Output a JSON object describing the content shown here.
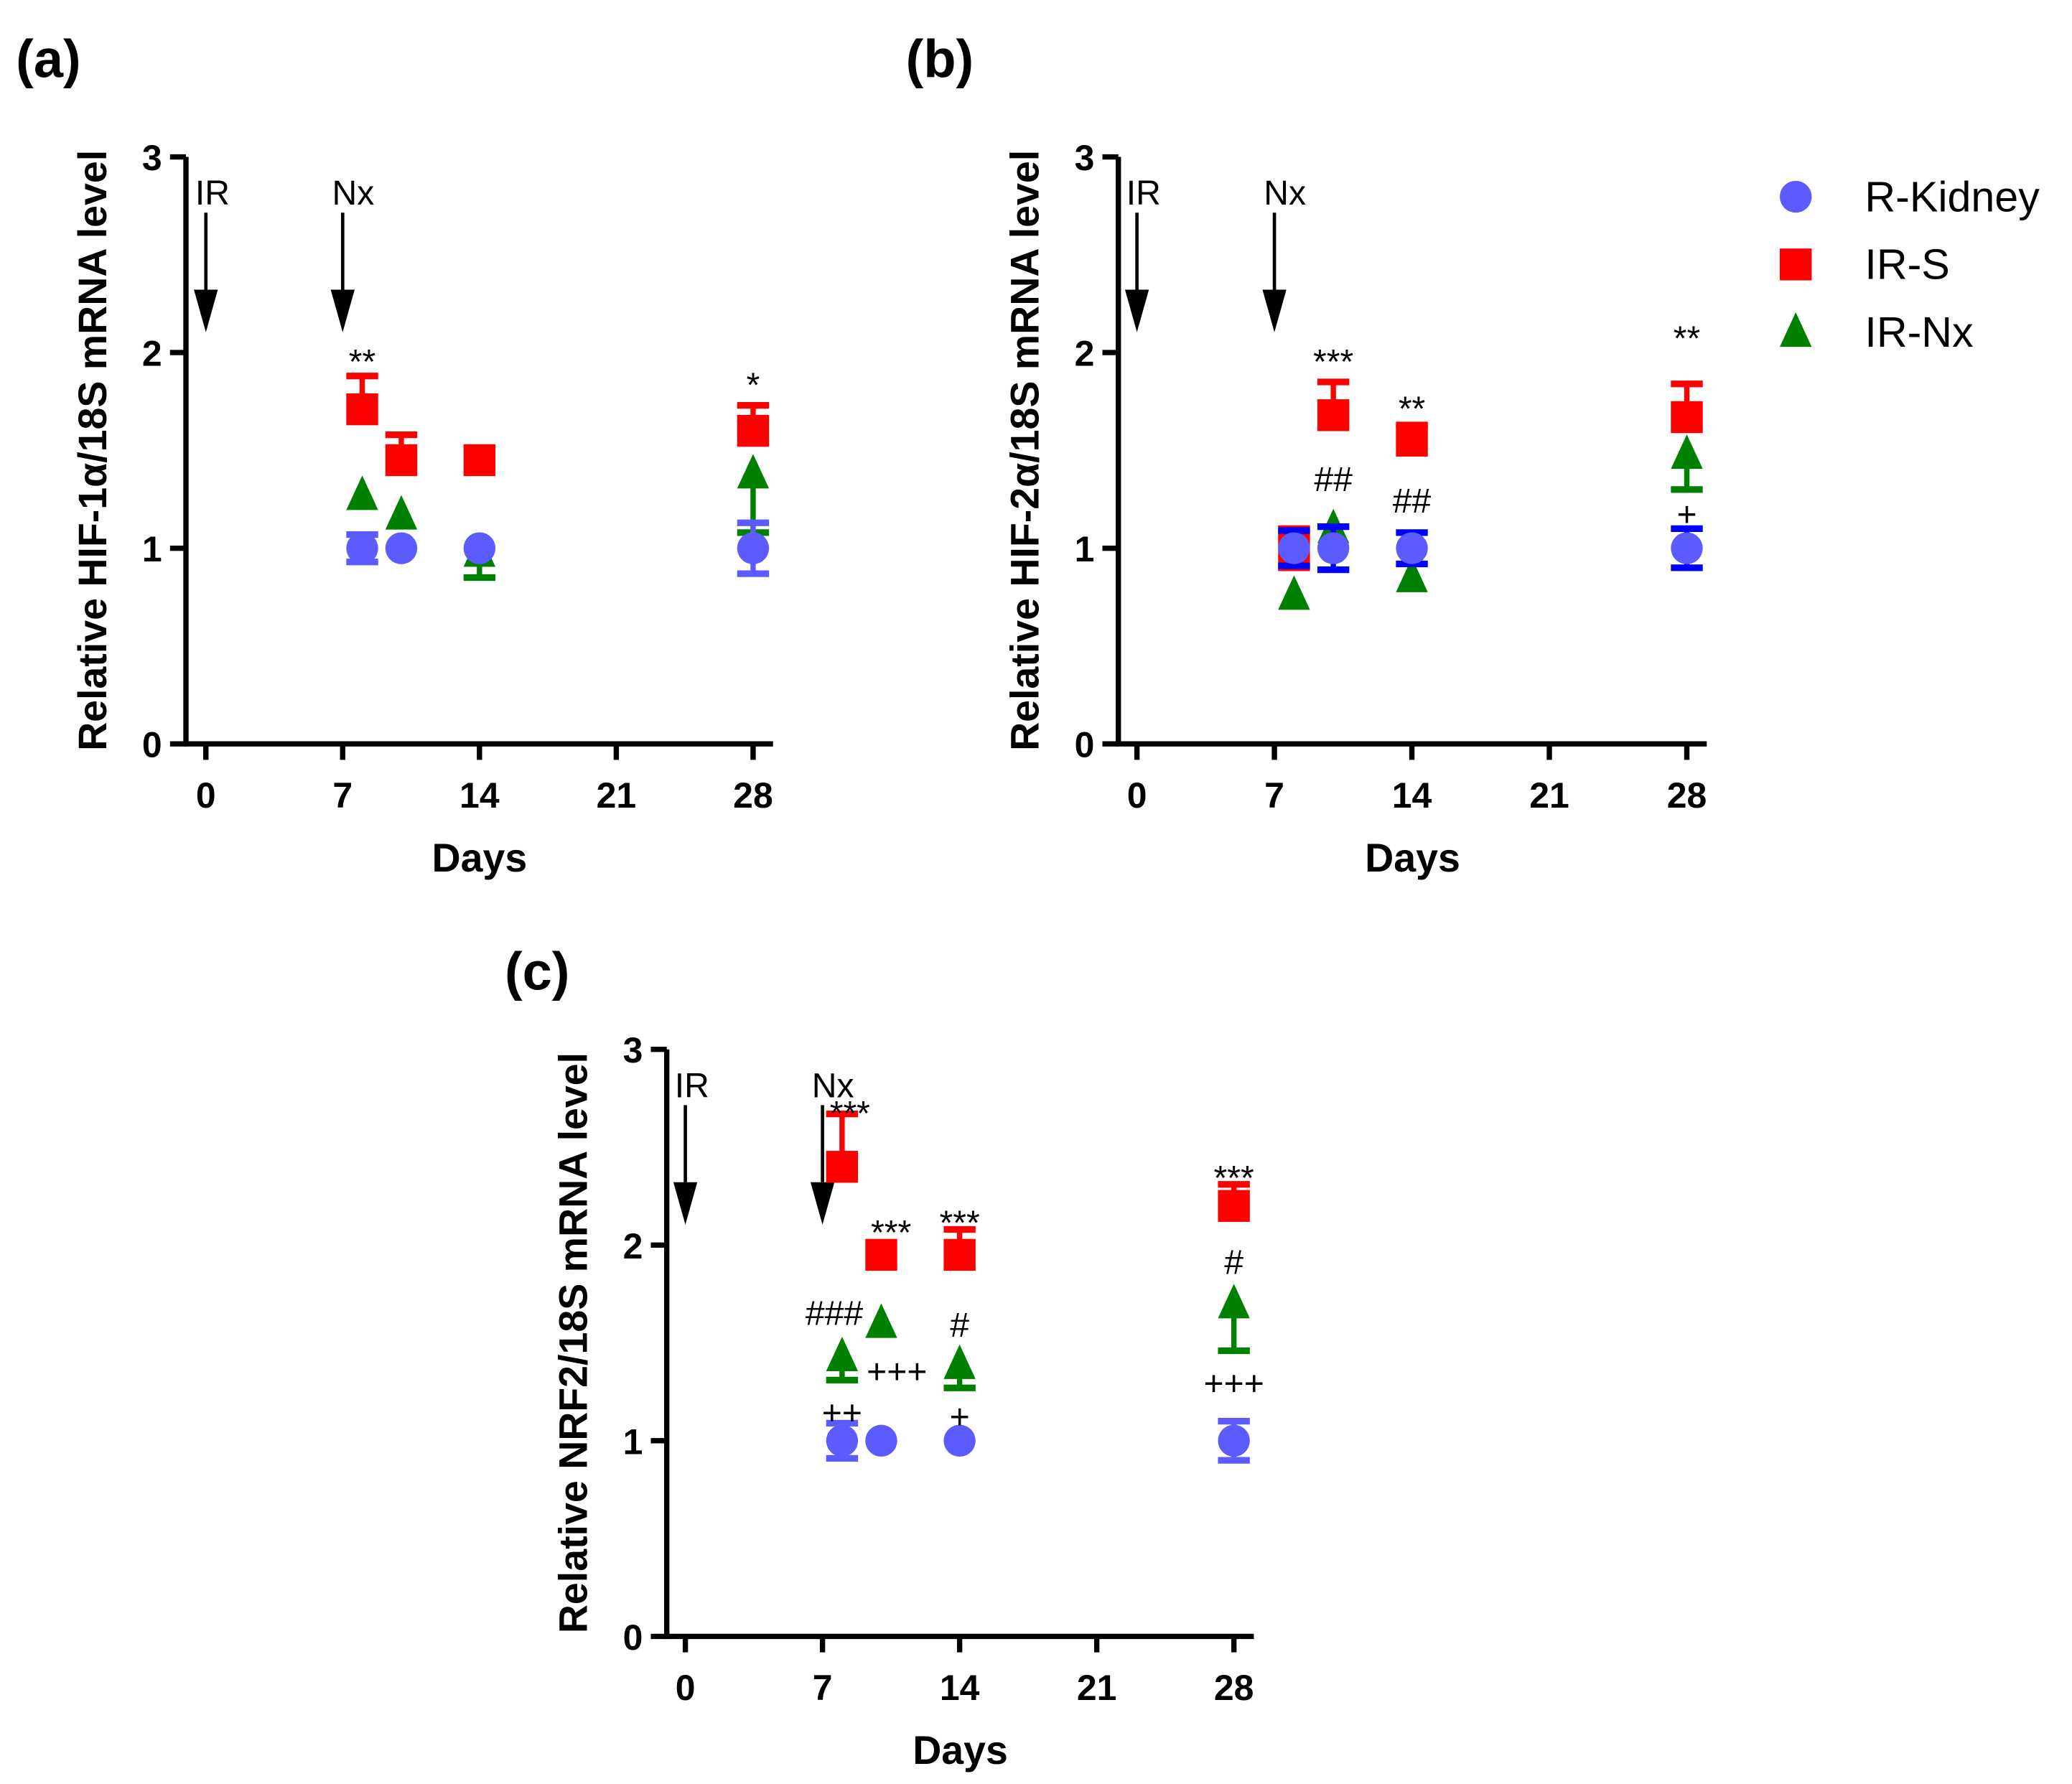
{
  "colors": {
    "R-Kidney": "#5b5bff",
    "IR-S": "#ff0000",
    "IR-Nx": "#008000",
    "axis": "#000000"
  },
  "legend": [
    {
      "name": "R-Kidney",
      "marker": "circle"
    },
    {
      "name": "IR-S",
      "marker": "square"
    },
    {
      "name": "IR-Nx",
      "marker": "triangle"
    }
  ],
  "chart_data": [
    {
      "type": "scatter",
      "label": "(a)",
      "xlabel": "Days",
      "ylabel": "Relative HIF-1α/18S mRNA level",
      "xticks": [
        0,
        7,
        14,
        21,
        28
      ],
      "yticks": [
        0,
        1,
        2,
        3
      ],
      "xlim": [
        0,
        28
      ],
      "ylim": [
        0,
        3
      ],
      "events": [
        {
          "label": "IR",
          "day": 0
        },
        {
          "label": "Nx",
          "day": 7
        }
      ],
      "series": [
        {
          "name": "R-Kidney",
          "points": [
            {
              "x": 8,
              "y": 1.0,
              "err": 0.07
            },
            {
              "x": 10,
              "y": 1.0,
              "err": 0
            },
            {
              "x": 14,
              "y": 1.0,
              "err": 0
            },
            {
              "x": 28,
              "y": 1.0,
              "err": 0.13
            }
          ]
        },
        {
          "name": "IR-S",
          "points": [
            {
              "x": 8,
              "y": 1.71,
              "err": 0.17
            },
            {
              "x": 10,
              "y": 1.45,
              "err": 0.13
            },
            {
              "x": 14,
              "y": 1.45,
              "err": 0
            },
            {
              "x": 28,
              "y": 1.6,
              "err": 0.13
            }
          ]
        },
        {
          "name": "IR-Nx",
          "points": [
            {
              "x": 8,
              "y": 1.27,
              "err": 0
            },
            {
              "x": 10,
              "y": 1.17,
              "err": 0
            },
            {
              "x": 14,
              "y": 0.98,
              "err": 0.13,
              "dir": "down"
            },
            {
              "x": 28,
              "y": 1.38,
              "err": 0.3,
              "dir": "down"
            }
          ]
        }
      ],
      "annotations": [
        {
          "text": "**",
          "x": 8,
          "y": 1.96
        },
        {
          "text": "*",
          "x": 28,
          "y": 1.84
        }
      ]
    },
    {
      "type": "scatter",
      "label": "(b)",
      "xlabel": "Days",
      "ylabel": "Relative HIF-2α/18S mRNA level",
      "xticks": [
        0,
        7,
        14,
        21,
        28
      ],
      "yticks": [
        0,
        1,
        2,
        3
      ],
      "xlim": [
        0,
        28
      ],
      "ylim": [
        0,
        3
      ],
      "events": [
        {
          "label": "IR",
          "day": 0
        },
        {
          "label": "Nx",
          "day": 7
        }
      ],
      "series": [
        {
          "name": "R-Kidney",
          "errcolor": "#0000ff",
          "points": [
            {
              "x": 8,
              "y": 1.0,
              "err": 0.09
            },
            {
              "x": 10,
              "y": 1.0,
              "err": 0.11
            },
            {
              "x": 14,
              "y": 1.0,
              "err": 0.08
            },
            {
              "x": 28,
              "y": 1.0,
              "err": 0.1
            }
          ]
        },
        {
          "name": "IR-S",
          "points": [
            {
              "x": 8,
              "y": 1.0,
              "err": 0.1
            },
            {
              "x": 10,
              "y": 1.68,
              "err": 0.17
            },
            {
              "x": 14,
              "y": 1.55,
              "err": 0.08
            },
            {
              "x": 28,
              "y": 1.67,
              "err": 0.17
            }
          ]
        },
        {
          "name": "IR-Nx",
          "points": [
            {
              "x": 8,
              "y": 0.76,
              "err": 0
            },
            {
              "x": 10,
              "y": 1.1,
              "err": 0
            },
            {
              "x": 14,
              "y": 0.85,
              "err": 0
            },
            {
              "x": 28,
              "y": 1.48,
              "err": 0.18,
              "dir": "down"
            }
          ]
        }
      ],
      "annotations": [
        {
          "text": "***",
          "x": 10,
          "y": 1.96
        },
        {
          "text": "**",
          "x": 14,
          "y": 1.72
        },
        {
          "text": "##",
          "x": 10,
          "y": 1.36
        },
        {
          "text": "##",
          "x": 14,
          "y": 1.25
        },
        {
          "text": "**",
          "x": 28,
          "y": 2.08
        },
        {
          "text": "+",
          "x": 28,
          "y": 1.18
        }
      ]
    },
    {
      "type": "scatter",
      "label": "(c)",
      "xlabel": "Days",
      "ylabel": "Relative NRF2/18S mRNA level",
      "xticks": [
        0,
        7,
        14,
        21,
        28
      ],
      "yticks": [
        0,
        1,
        2,
        3
      ],
      "xlim": [
        0,
        28
      ],
      "ylim": [
        0,
        3
      ],
      "events": [
        {
          "label": "IR",
          "day": 0
        },
        {
          "label": "Nx",
          "day": 7
        }
      ],
      "series": [
        {
          "name": "R-Kidney",
          "points": [
            {
              "x": 8,
              "y": 1.0,
              "err": 0.09
            },
            {
              "x": 10,
              "y": 1.0,
              "err": 0
            },
            {
              "x": 14,
              "y": 1.0,
              "err": 0
            },
            {
              "x": 28,
              "y": 1.0,
              "err": 0.1
            }
          ]
        },
        {
          "name": "IR-S",
          "points": [
            {
              "x": 8,
              "y": 2.4,
              "err": 0.27
            },
            {
              "x": 10,
              "y": 1.95,
              "err": 0
            },
            {
              "x": 14,
              "y": 1.95,
              "err": 0.13
            },
            {
              "x": 28,
              "y": 2.2,
              "err": 0.11
            }
          ]
        },
        {
          "name": "IR-Nx",
          "points": [
            {
              "x": 8,
              "y": 1.43,
              "err": 0.12,
              "dir": "down"
            },
            {
              "x": 10,
              "y": 1.6,
              "err": 0
            },
            {
              "x": 14,
              "y": 1.39,
              "err": 0.12,
              "dir": "down"
            },
            {
              "x": 28,
              "y": 1.7,
              "err": 0.24,
              "dir": "down"
            }
          ]
        }
      ],
      "annotations": [
        {
          "text": "***",
          "x": 8.4,
          "y": 2.68
        },
        {
          "text": "***",
          "x": 10.5,
          "y": 2.07
        },
        {
          "text": "***",
          "x": 14,
          "y": 2.12
        },
        {
          "text": "***",
          "x": 28,
          "y": 2.35
        },
        {
          "text": "###",
          "x": 7.6,
          "y": 1.66
        },
        {
          "text": "+++",
          "x": 10.8,
          "y": 1.36
        },
        {
          "text": "#",
          "x": 14,
          "y": 1.6
        },
        {
          "text": "++",
          "x": 8,
          "y": 1.15
        },
        {
          "text": "+",
          "x": 14,
          "y": 1.13
        },
        {
          "text": "#",
          "x": 28,
          "y": 1.92
        },
        {
          "text": "+++",
          "x": 28,
          "y": 1.3
        }
      ]
    }
  ]
}
